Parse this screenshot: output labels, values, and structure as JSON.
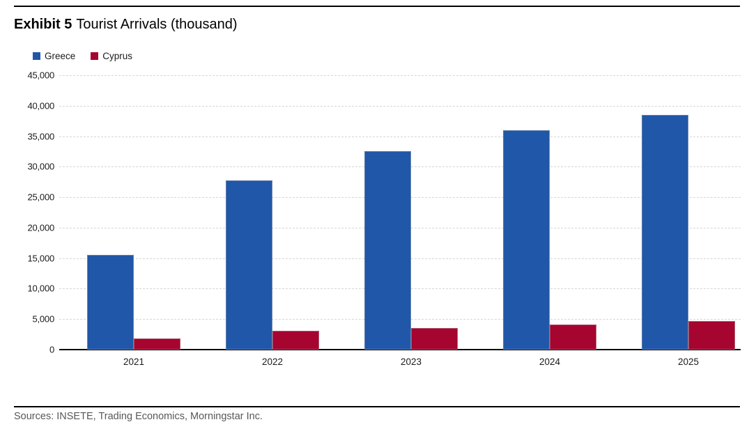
{
  "header": {
    "exhibit_label": "Exhibit 5",
    "title": "Tourist Arrivals (thousand)"
  },
  "chart_data": {
    "type": "bar",
    "title": "Exhibit 5 Tourist Arrivals (thousand)",
    "categories": [
      "2021",
      "2022",
      "2023",
      "2024",
      "2025"
    ],
    "series": [
      {
        "name": "Greece",
        "color": "#2057A8",
        "values": [
          15500,
          27800,
          32500,
          36000,
          38500
        ]
      },
      {
        "name": "Cyprus",
        "color": "#A5052F",
        "values": [
          1800,
          3100,
          3600,
          4100,
          4700
        ]
      }
    ],
    "xlabel": "",
    "ylabel": "",
    "ylim": [
      0,
      45000
    ],
    "ytick_step": 5000,
    "ytick_labels": [
      "0",
      "5,000",
      "10,000",
      "15,000",
      "20,000",
      "25,000",
      "30,000",
      "35,000",
      "40,000",
      "45,000"
    ],
    "grid": "horizontal-dashed",
    "legend_position": "top-left"
  },
  "footer": {
    "sources": "Sources: INSETE, Trading Economics, Morningstar Inc."
  }
}
